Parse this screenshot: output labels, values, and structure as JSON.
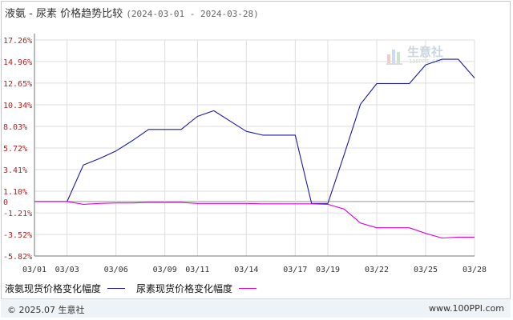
{
  "header": {
    "title": "液氨 - 尿素 价格趋势比较",
    "date_range": "(2024-03-01 - 2024-03-28)"
  },
  "watermark": {
    "brand": "生意社",
    "url": "100PPI.COM"
  },
  "footer": {
    "copyright": "© 2025.07 生意社",
    "site": "www.100PPI.com"
  },
  "colors": {
    "series_1": "#1a1aa6",
    "series_2": "#e000e0",
    "axis_text": "#b22222",
    "grid": "#dddddd"
  },
  "chart_data": {
    "type": "line",
    "title": "液氨 - 尿素 价格趋势比较",
    "xlabel": "",
    "ylabel": "",
    "x": [
      "03/01",
      "03/02",
      "03/03",
      "03/04",
      "03/05",
      "03/06",
      "03/07",
      "03/08",
      "03/09",
      "03/10",
      "03/11",
      "03/12",
      "03/13",
      "03/14",
      "03/15",
      "03/16",
      "03/17",
      "03/18",
      "03/19",
      "03/20",
      "03/21",
      "03/22",
      "03/23",
      "03/24",
      "03/25",
      "03/26",
      "03/27",
      "03/28"
    ],
    "x_tick_labels": [
      "03/01",
      "03/03",
      "03/06",
      "03/09",
      "03/11",
      "03/14",
      "03/17",
      "03/19",
      "03/22",
      "03/25",
      "03/28"
    ],
    "y_tick_labels": [
      "17.26%",
      "14.96%",
      "12.65%",
      "10.34%",
      "8.03%",
      "5.72%",
      "3.41%",
      "1.10%",
      "0",
      "-1.21%",
      "-3.52%",
      "-5.82%"
    ],
    "y_ticks": [
      17.26,
      14.96,
      12.65,
      10.34,
      8.03,
      5.72,
      3.41,
      1.1,
      0,
      -1.21,
      -3.52,
      -5.82
    ],
    "ylim": [
      -5.82,
      17.26
    ],
    "grid": true,
    "legend_position": "bottom-left",
    "series": [
      {
        "name": "液氨现货价格变化幅度",
        "values": [
          0,
          0,
          0,
          3.9,
          4.6,
          5.4,
          6.5,
          7.7,
          7.7,
          7.7,
          9.1,
          9.7,
          8.6,
          7.5,
          7.1,
          7.1,
          7.1,
          -0.2,
          -0.2,
          5.0,
          10.4,
          12.6,
          12.6,
          12.6,
          14.6,
          15.2,
          15.2,
          13.2
        ]
      },
      {
        "name": "尿素现货价格变化幅度",
        "values": [
          0,
          0,
          0,
          -0.3,
          -0.2,
          -0.15,
          -0.15,
          -0.1,
          -0.1,
          -0.1,
          -0.2,
          -0.2,
          -0.2,
          -0.2,
          -0.25,
          -0.25,
          -0.25,
          -0.25,
          -0.3,
          -0.8,
          -2.3,
          -2.8,
          -2.8,
          -2.8,
          -3.4,
          -3.9,
          -3.8,
          -3.8
        ]
      }
    ]
  }
}
